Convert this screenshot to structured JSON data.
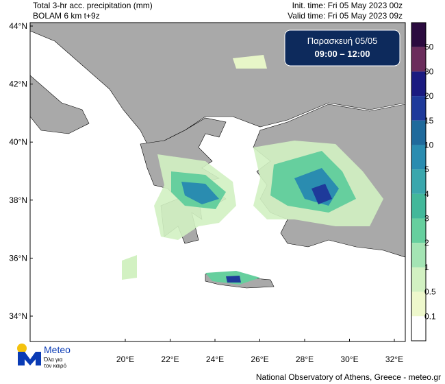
{
  "header": {
    "title": "Total 3-hr acc. precipitation (mm)",
    "model": "BOLAM 6 km t+9z",
    "init_time": "Init. time: Fri 05 May 2023 00z",
    "valid_time": "Valid time: Fri 05 May 2023 09z"
  },
  "badge": {
    "day": "Παρασκευή  05/05",
    "hours": "09:00 – 12:00"
  },
  "axes": {
    "lat_labels": [
      "44°N",
      "42°N",
      "40°N",
      "38°N",
      "36°N",
      "34°N"
    ],
    "lon_labels": [
      "20°E",
      "22°E",
      "24°E",
      "26°E",
      "28°E",
      "30°E",
      "32°E"
    ]
  },
  "colorbar": {
    "labels": [
      "50",
      "30",
      "20",
      "15",
      "10",
      "5",
      "4",
      "3",
      "2",
      "1",
      "0.5",
      "0.1"
    ],
    "colors": [
      "#2b0b3f",
      "#6b2d5c",
      "#1a1a80",
      "#1e3a9a",
      "#1f6a9c",
      "#2a8cb0",
      "#3aa7ad",
      "#42b89a",
      "#66cf9e",
      "#a4e4b4",
      "#d2f1c2",
      "#eef8cc",
      "#ffffff"
    ]
  },
  "logo": {
    "name": "Meteo",
    "tagline_1": "Όλα για",
    "tagline_2": "τον καιρό"
  },
  "footer": "National Observatory of Athens, Greece - meteo.gr"
}
